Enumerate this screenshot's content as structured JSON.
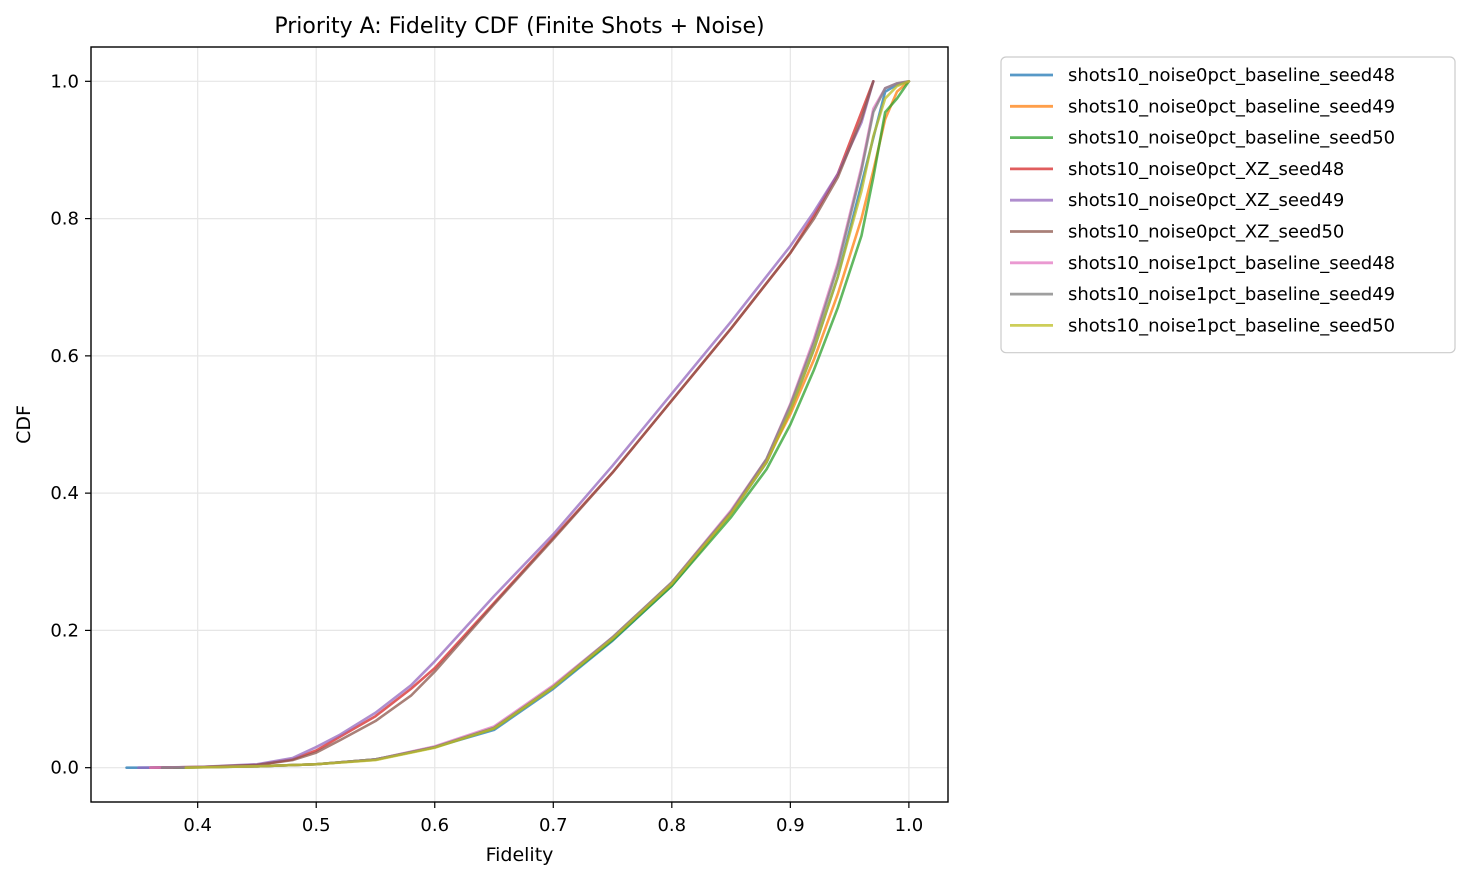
{
  "chart_data": {
    "type": "line",
    "title": "Priority A: Fidelity CDF (Finite Shots + Noise)",
    "xlabel": "Fidelity",
    "ylabel": "CDF",
    "xlim": [
      0.31,
      1.033
    ],
    "ylim": [
      -0.05,
      1.05
    ],
    "xticks": [
      "0.4",
      "0.5",
      "0.6",
      "0.7",
      "0.8",
      "0.9",
      "1.0"
    ],
    "yticks": [
      "0.0",
      "0.2",
      "0.4",
      "0.6",
      "0.8",
      "1.0"
    ],
    "grid": true,
    "legend_position": "outside-right-top",
    "series": [
      {
        "name": "shots10_noise0pct_baseline_seed48",
        "color": "#1f77b4",
        "x": [
          0.34,
          0.38,
          0.45,
          0.5,
          0.55,
          0.6,
          0.65,
          0.7,
          0.75,
          0.8,
          0.85,
          0.88,
          0.9,
          0.92,
          0.94,
          0.96,
          0.98,
          0.99,
          1.0
        ],
        "y": [
          0.0,
          0.0,
          0.002,
          0.005,
          0.012,
          0.03,
          0.055,
          0.115,
          0.185,
          0.265,
          0.37,
          0.445,
          0.52,
          0.61,
          0.715,
          0.85,
          0.985,
          0.995,
          1.0
        ]
      },
      {
        "name": "shots10_noise0pct_baseline_seed49",
        "color": "#ff7f0e",
        "x": [
          0.37,
          0.45,
          0.5,
          0.55,
          0.6,
          0.65,
          0.7,
          0.75,
          0.8,
          0.85,
          0.88,
          0.9,
          0.92,
          0.94,
          0.96,
          0.97,
          0.98,
          0.99,
          1.0
        ],
        "y": [
          0.0,
          0.002,
          0.005,
          0.012,
          0.03,
          0.058,
          0.118,
          0.188,
          0.268,
          0.372,
          0.448,
          0.515,
          0.595,
          0.69,
          0.8,
          0.87,
          0.945,
          0.985,
          1.0
        ]
      },
      {
        "name": "shots10_noise0pct_baseline_seed50",
        "color": "#2ca02c",
        "x": [
          0.38,
          0.45,
          0.5,
          0.55,
          0.6,
          0.65,
          0.7,
          0.75,
          0.8,
          0.85,
          0.88,
          0.9,
          0.92,
          0.94,
          0.96,
          0.97,
          0.98,
          0.99,
          1.0
        ],
        "y": [
          0.0,
          0.002,
          0.005,
          0.012,
          0.03,
          0.057,
          0.117,
          0.186,
          0.265,
          0.365,
          0.435,
          0.5,
          0.58,
          0.67,
          0.775,
          0.86,
          0.955,
          0.975,
          1.0
        ]
      },
      {
        "name": "shots10_noise0pct_XZ_seed48",
        "color": "#d62728",
        "x": [
          0.36,
          0.4,
          0.45,
          0.48,
          0.5,
          0.52,
          0.55,
          0.58,
          0.6,
          0.65,
          0.7,
          0.75,
          0.8,
          0.85,
          0.9,
          0.92,
          0.94,
          0.96,
          0.97
        ],
        "y": [
          0.0,
          0.001,
          0.004,
          0.012,
          0.025,
          0.045,
          0.075,
          0.115,
          0.145,
          0.24,
          0.335,
          0.43,
          0.535,
          0.64,
          0.75,
          0.805,
          0.865,
          0.955,
          1.0
        ]
      },
      {
        "name": "shots10_noise0pct_XZ_seed49",
        "color": "#9467bd",
        "x": [
          0.35,
          0.4,
          0.45,
          0.48,
          0.5,
          0.52,
          0.55,
          0.58,
          0.6,
          0.65,
          0.7,
          0.75,
          0.8,
          0.85,
          0.9,
          0.92,
          0.94,
          0.96,
          0.97
        ],
        "y": [
          0.0,
          0.001,
          0.005,
          0.014,
          0.03,
          0.048,
          0.08,
          0.12,
          0.155,
          0.25,
          0.34,
          0.44,
          0.545,
          0.65,
          0.76,
          0.81,
          0.865,
          0.94,
          1.0
        ]
      },
      {
        "name": "shots10_noise0pct_XZ_seed50",
        "color": "#8c564b",
        "x": [
          0.36,
          0.4,
          0.45,
          0.48,
          0.5,
          0.52,
          0.55,
          0.58,
          0.6,
          0.65,
          0.7,
          0.75,
          0.8,
          0.85,
          0.9,
          0.92,
          0.94,
          0.96,
          0.97
        ],
        "y": [
          0.0,
          0.001,
          0.004,
          0.011,
          0.022,
          0.04,
          0.068,
          0.105,
          0.14,
          0.238,
          0.333,
          0.43,
          0.535,
          0.64,
          0.75,
          0.8,
          0.86,
          0.945,
          1.0
        ]
      },
      {
        "name": "shots10_noise1pct_baseline_seed48",
        "color": "#e377c2",
        "x": [
          0.36,
          0.45,
          0.5,
          0.55,
          0.6,
          0.65,
          0.7,
          0.75,
          0.8,
          0.85,
          0.88,
          0.9,
          0.92,
          0.94,
          0.96,
          0.97,
          0.98,
          0.99,
          1.0
        ],
        "y": [
          0.0,
          0.002,
          0.005,
          0.012,
          0.031,
          0.06,
          0.12,
          0.19,
          0.27,
          0.375,
          0.45,
          0.53,
          0.625,
          0.735,
          0.875,
          0.96,
          0.99,
          0.997,
          1.0
        ]
      },
      {
        "name": "shots10_noise1pct_baseline_seed49",
        "color": "#7f7f7f",
        "x": [
          0.37,
          0.45,
          0.5,
          0.55,
          0.6,
          0.65,
          0.7,
          0.75,
          0.8,
          0.85,
          0.88,
          0.9,
          0.92,
          0.94,
          0.96,
          0.97,
          0.98,
          0.99,
          1.0
        ],
        "y": [
          0.0,
          0.002,
          0.005,
          0.012,
          0.03,
          0.058,
          0.118,
          0.19,
          0.27,
          0.373,
          0.45,
          0.528,
          0.62,
          0.73,
          0.87,
          0.955,
          0.99,
          0.997,
          1.0
        ]
      },
      {
        "name": "shots10_noise1pct_baseline_seed50",
        "color": "#bcbd22",
        "x": [
          0.39,
          0.45,
          0.5,
          0.55,
          0.6,
          0.65,
          0.7,
          0.75,
          0.8,
          0.85,
          0.88,
          0.9,
          0.92,
          0.94,
          0.96,
          0.97,
          0.98,
          0.99,
          1.0
        ],
        "y": [
          0.0,
          0.002,
          0.005,
          0.011,
          0.029,
          0.057,
          0.117,
          0.188,
          0.268,
          0.37,
          0.445,
          0.52,
          0.61,
          0.715,
          0.84,
          0.92,
          0.975,
          0.993,
          1.0
        ]
      }
    ]
  }
}
